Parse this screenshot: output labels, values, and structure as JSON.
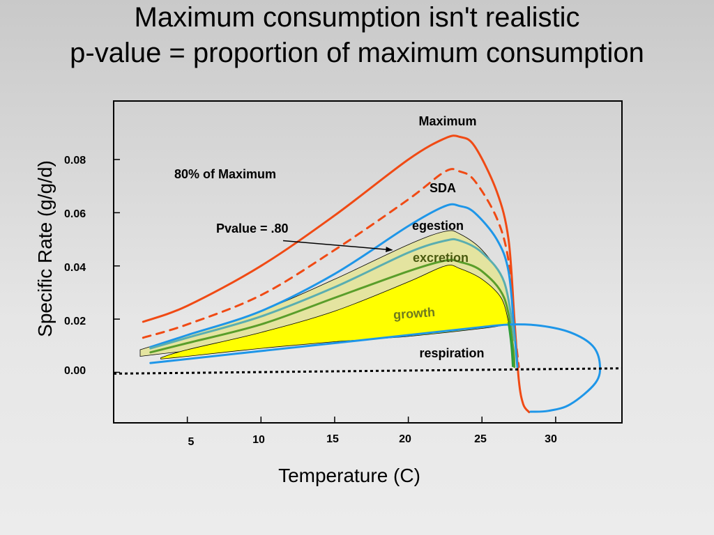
{
  "title": {
    "line1": "Maximum consumption isn't realistic",
    "line2": "p-value = proportion of maximum consumption"
  },
  "chart_data": {
    "type": "line",
    "xlabel": "Temperature (C)",
    "ylabel": "Specific Rate (g/g/d)",
    "xlim": [
      0,
      34.5
    ],
    "ylim": [
      -0.019,
      0.102
    ],
    "x_ticks": [
      5,
      10,
      15,
      20,
      25,
      30
    ],
    "x_tick_labels": [
      "5",
      "10",
      "15",
      "20",
      "25",
      "30"
    ],
    "y_ticks": [
      0.0,
      0.02,
      0.04,
      0.06,
      0.08
    ],
    "y_tick_labels": [
      "0.00",
      "0.02",
      "0.04",
      "0.06",
      "0.08"
    ],
    "grid": false,
    "zero_line": true,
    "annotations": {
      "maximum": "Maximum",
      "eighty_pct": "80% of Maximum",
      "sda": "SDA",
      "pvalue": "Pvalue = .80",
      "egestion": "egestion",
      "excretion": "excretion",
      "growth": "growth",
      "respiration": "respiration"
    },
    "series": [
      {
        "key": "maximum",
        "style": "solid",
        "color": "#f04a14",
        "x": [
          2.0,
          5.0,
          10.0,
          15.0,
          20.0,
          22.5,
          23.5,
          24.5,
          26.0,
          26.8,
          27.2,
          27.5,
          27.8,
          28.2
        ],
        "y": [
          0.019,
          0.025,
          0.04,
          0.059,
          0.08,
          0.088,
          0.0885,
          0.085,
          0.068,
          0.05,
          0.02,
          -0.003,
          -0.012,
          -0.015
        ]
      },
      {
        "key": "eighty_pct",
        "style": "dashed",
        "color": "#f04a14",
        "x": [
          2.0,
          5.0,
          10.0,
          15.0,
          20.0,
          22.5,
          23.5,
          24.5,
          26.0,
          26.8,
          27.2,
          27.5
        ],
        "y": [
          0.013,
          0.018,
          0.029,
          0.046,
          0.065,
          0.0755,
          0.0755,
          0.072,
          0.058,
          0.042,
          0.017,
          0.002
        ]
      },
      {
        "key": "sda",
        "style": "solid",
        "color": "#1e96e8",
        "x": [
          2.5,
          5.0,
          10.0,
          15.0,
          20.0,
          22.5,
          23.5,
          24.5,
          26.0,
          26.8,
          27.2,
          27.4
        ],
        "y": [
          0.0095,
          0.014,
          0.023,
          0.037,
          0.055,
          0.0625,
          0.0625,
          0.06,
          0.05,
          0.038,
          0.015,
          0.002
        ]
      },
      {
        "key": "egestion",
        "style": "solid",
        "color": "#5aaeb0",
        "x": [
          2.5,
          5.0,
          10.0,
          15.0,
          20.0,
          22.5,
          23.5,
          25.0,
          26.5,
          27.2
        ],
        "y": [
          0.009,
          0.013,
          0.021,
          0.032,
          0.045,
          0.0495,
          0.0495,
          0.045,
          0.034,
          0.012
        ]
      },
      {
        "key": "excretion",
        "style": "solid",
        "color": "#5a9e2a",
        "x": [
          2.5,
          5.0,
          10.0,
          15.0,
          20.0,
          22.5,
          23.5,
          25.0,
          26.5,
          27.1,
          27.2
        ],
        "y": [
          0.0075,
          0.011,
          0.018,
          0.028,
          0.038,
          0.042,
          0.0415,
          0.038,
          0.028,
          0.01,
          0.002
        ]
      },
      {
        "key": "respiration",
        "style": "solid",
        "color": "#1e96e8",
        "x": [
          2.5,
          5.0,
          10.0,
          15.0,
          20.0,
          25.0,
          27.0,
          29.0,
          31.0,
          32.5,
          33.0,
          32.7,
          31.0,
          29.5,
          28.3
        ],
        "y": [
          0.0035,
          0.005,
          0.008,
          0.011,
          0.014,
          0.017,
          0.018,
          0.0175,
          0.015,
          0.01,
          0.003,
          -0.004,
          -0.012,
          -0.0145,
          -0.0148
        ]
      }
    ],
    "bands": [
      {
        "key": "egestion_band",
        "fill": "#e4e4a0",
        "upper_x": [
          1.8,
          5.0,
          10.0,
          15.0,
          20.0,
          22.5,
          23.5,
          25.0,
          26.5,
          27.1
        ],
        "upper_y": [
          0.0085,
          0.014,
          0.023,
          0.035,
          0.048,
          0.053,
          0.052,
          0.046,
          0.034,
          0.018
        ],
        "lower_x": [
          1.8,
          5.0,
          10.0,
          15.0,
          20.0,
          25.0,
          27.1
        ],
        "lower_y": [
          0.006,
          0.008,
          0.01,
          0.012,
          0.014,
          0.017,
          0.018
        ]
      },
      {
        "key": "growth_band",
        "fill": "#ffff00",
        "upper_x": [
          3.2,
          5.0,
          10.0,
          15.0,
          20.0,
          22.5,
          23.5,
          25.0,
          26.3,
          26.8
        ],
        "upper_y": [
          0.0055,
          0.0085,
          0.015,
          0.023,
          0.034,
          0.04,
          0.039,
          0.035,
          0.028,
          0.019
        ],
        "lower_x": [
          3.2,
          5.0,
          10.0,
          15.0,
          20.0,
          25.0,
          26.8
        ],
        "lower_y": [
          0.005,
          0.006,
          0.009,
          0.0115,
          0.0135,
          0.0165,
          0.018
        ]
      }
    ],
    "consumption_drop": {
      "color": "#2e9e3a",
      "x": [
        26.8,
        27.0,
        27.1
      ],
      "y": [
        0.019,
        0.01,
        0.002
      ]
    },
    "arrow": {
      "from": [
        11.5,
        0.0495
      ],
      "to": [
        18.9,
        0.046
      ]
    }
  }
}
